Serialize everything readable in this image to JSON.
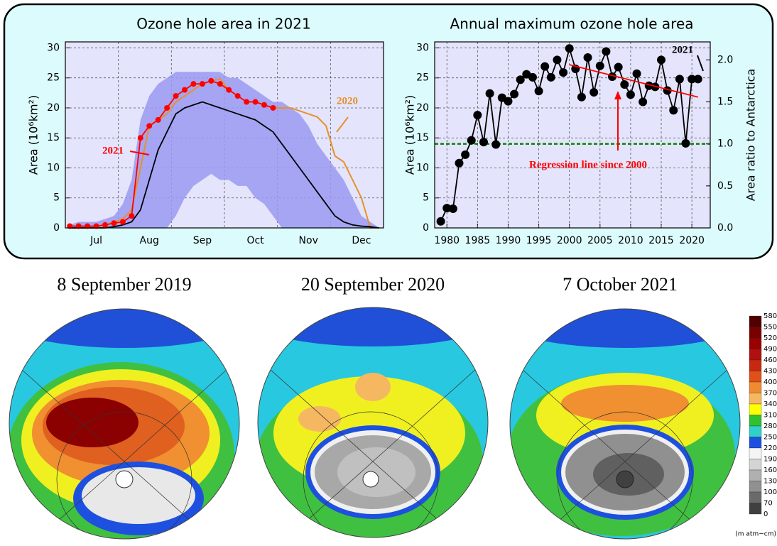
{
  "chart_data": [
    {
      "type": "line",
      "title": "Ozone hole area in 2021",
      "ylabel": "Area (10⁶km²)",
      "categories": [
        null,
        null,
        null,
        "Jul",
        null,
        null,
        null,
        null,
        null,
        "Aug",
        null,
        null,
        null,
        null,
        null,
        "Sep",
        null,
        null,
        null,
        null,
        null,
        "Oct",
        null,
        null,
        null,
        null,
        null,
        "Nov",
        null,
        null,
        null,
        null,
        null,
        "Dec",
        null,
        null
      ],
      "band": {
        "color": "#9a9af2",
        "upper": [
          0.5,
          1,
          1,
          1,
          1.5,
          2,
          4,
          8,
          18,
          22,
          24,
          25,
          26,
          26,
          26,
          26,
          26,
          26,
          25,
          25,
          24,
          23,
          22,
          21,
          21,
          20,
          19,
          17,
          14,
          12,
          10,
          8,
          5,
          2,
          1,
          0
        ],
        "lower": [
          0,
          0,
          0,
          0,
          0,
          0,
          0,
          0,
          0,
          0,
          0,
          0,
          2,
          5,
          7,
          8,
          9,
          8,
          8,
          7,
          7,
          5,
          4,
          2,
          0,
          0,
          0,
          0,
          0,
          0,
          0,
          0,
          0,
          0,
          0,
          0
        ]
      },
      "series": [
        {
          "color": "#e8902a",
          "values": [
            0,
            0,
            0,
            0.2,
            0.5,
            1,
            1.5,
            3,
            10,
            17,
            18,
            19,
            21,
            22,
            23,
            24,
            24.5,
            24.8,
            23,
            22,
            21,
            21,
            20.5,
            20,
            20,
            20,
            19.5,
            19,
            18.5,
            17,
            12,
            11,
            8,
            5,
            0,
            0
          ]
        },
        {
          "color": "#000000",
          "values": [
            0,
            0,
            0,
            0,
            0,
            0.2,
            0.5,
            1,
            3,
            8,
            13,
            16,
            19,
            20,
            20.5,
            21,
            20.5,
            20,
            19.5,
            19,
            18.5,
            18,
            17,
            16,
            14,
            12,
            10,
            8,
            6,
            4,
            2,
            1,
            0.5,
            0.3,
            0.2,
            0
          ]
        },
        {
          "color": "#ff0000",
          "markers": true,
          "values": [
            0.3,
            0.3,
            0.3,
            0.3,
            0.5,
            0.8,
            1,
            2,
            15,
            17,
            18,
            20,
            22,
            23,
            24,
            24,
            24.5,
            24,
            23,
            22,
            21,
            21,
            20.5,
            20,
            null,
            null,
            null,
            null,
            null,
            null,
            null,
            null,
            null,
            null,
            null,
            null
          ]
        }
      ],
      "annotations": [
        "2021",
        "2020"
      ],
      "ylim": [
        0,
        31
      ],
      "yticks": [
        0,
        5,
        10,
        15,
        20,
        25,
        30
      ],
      "grid": true
    },
    {
      "type": "line",
      "title": "Annual maximum ozone hole area",
      "ylabel": "Area (10⁶km²)",
      "y2label": "Area ratio to Antarctica",
      "x": [
        1979,
        1980,
        1981,
        1982,
        1983,
        1984,
        1985,
        1986,
        1987,
        1988,
        1989,
        1990,
        1991,
        1992,
        1993,
        1994,
        1995,
        1996,
        1997,
        1998,
        1999,
        2000,
        2001,
        2002,
        2003,
        2004,
        2005,
        2006,
        2007,
        2008,
        2009,
        2010,
        2011,
        2012,
        2013,
        2014,
        2015,
        2016,
        2017,
        2018,
        2019,
        2020,
        2021
      ],
      "series": [
        {
          "color": "#000000",
          "markers": true,
          "values": [
            1.1,
            3.3,
            3.2,
            10.8,
            12.2,
            14.6,
            18.8,
            14.3,
            22.4,
            13.9,
            21.7,
            21.1,
            22.3,
            24.7,
            25.6,
            25.1,
            22.8,
            26.9,
            25.1,
            28.0,
            25.9,
            29.9,
            26.5,
            21.8,
            28.4,
            22.6,
            27.0,
            29.4,
            25.2,
            26.8,
            23.9,
            22.2,
            25.7,
            21.0,
            23.7,
            23.5,
            28.0,
            22.9,
            19.6,
            24.8,
            14.1,
            24.8,
            24.8
          ]
        },
        {
          "color": "#ff0000",
          "x": [
            2000,
            2021
          ],
          "values": [
            27.2,
            21.8
          ]
        }
      ],
      "reference_line": {
        "axis": "y2",
        "value": 1,
        "color": "#008800"
      },
      "annotations": [
        "2021",
        "Regression line since 2000"
      ],
      "xlim": [
        1978,
        2023
      ],
      "xticks": [
        1980,
        1985,
        1990,
        1995,
        2000,
        2005,
        2010,
        2015,
        2020
      ],
      "ylim": [
        0,
        31
      ],
      "yticks": [
        0,
        5,
        10,
        15,
        20,
        25,
        30
      ],
      "y2lim": [
        0,
        2.214
      ],
      "y2ticks": [
        {
          "value": 0,
          "label": "0.0"
        },
        0.5,
        {
          "value": 1,
          "label": "1.0"
        },
        1.5,
        {
          "value": 2,
          "label": "2.0"
        }
      ],
      "grid": true
    }
  ],
  "maps": [
    {
      "title": "8 September 2019"
    },
    {
      "title": "20 September 2020"
    },
    {
      "title": "7 October 2021"
    }
  ],
  "colorbar": {
    "ticks": [
      580,
      550,
      520,
      490,
      460,
      430,
      400,
      370,
      340,
      310,
      280,
      250,
      220,
      190,
      160,
      130,
      100,
      70,
      0
    ],
    "colors": [
      "#500000",
      "#7a0000",
      "#9a0000",
      "#b01010",
      "#c82810",
      "#e05018",
      "#f08a30",
      "#f5b860",
      "#ffff00",
      "#30c030",
      "#30d0c8",
      "#1e50e0",
      "#f4f4f4",
      "#d4d4d4",
      "#b0b0b0",
      "#909090",
      "#6a6a6a",
      "#404040"
    ],
    "unit": "(m atm−cm)"
  }
}
